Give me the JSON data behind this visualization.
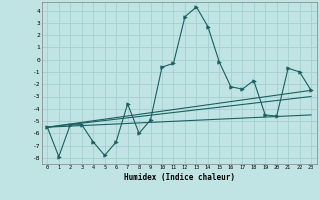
{
  "xlabel": "Humidex (Indice chaleur)",
  "bg_color": "#c0e4e4",
  "grid_color": "#a0cccc",
  "line_color": "#1a6060",
  "xlim": [
    -0.5,
    23.5
  ],
  "ylim": [
    -8.5,
    4.7
  ],
  "yticks": [
    4,
    3,
    2,
    1,
    0,
    -1,
    -2,
    -3,
    -4,
    -5,
    -6,
    -7,
    -8
  ],
  "xticks": [
    0,
    1,
    2,
    3,
    4,
    5,
    6,
    7,
    8,
    9,
    10,
    11,
    12,
    13,
    14,
    15,
    16,
    17,
    18,
    19,
    20,
    21,
    22,
    23
  ],
  "line1_x": [
    0,
    1,
    2,
    3,
    4,
    5,
    6,
    7,
    8,
    9,
    10,
    11,
    12,
    13,
    14,
    15,
    16,
    17,
    18,
    19,
    20,
    21,
    22,
    23
  ],
  "line1_y": [
    -5.5,
    -7.9,
    -5.3,
    -5.3,
    -6.7,
    -7.8,
    -6.7,
    -3.6,
    -6.0,
    -4.9,
    -0.6,
    -0.3,
    3.5,
    4.3,
    2.7,
    -0.2,
    -2.2,
    -2.4,
    -1.7,
    -4.5,
    -4.6,
    -0.7,
    -1.0,
    -2.5
  ],
  "line2_x": [
    0,
    23
  ],
  "line2_y": [
    -5.5,
    -2.5
  ],
  "line3_x": [
    0,
    23
  ],
  "line3_y": [
    -5.5,
    -4.5
  ],
  "line4_x": [
    0,
    23
  ],
  "line4_y": [
    -5.5,
    -3.0
  ]
}
